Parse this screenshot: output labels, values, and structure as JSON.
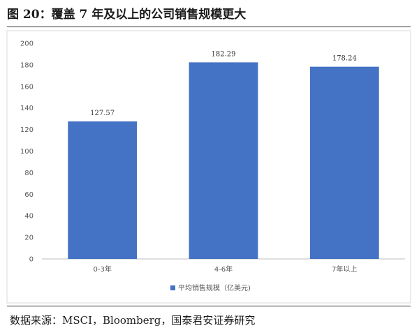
{
  "header": {
    "title": "图 20：覆盖 7 年及以上的公司销售规模更大"
  },
  "footer": {
    "source": "数据来源：MSCI，Bloomberg，国泰君安证券研究"
  },
  "chart_data": {
    "type": "bar",
    "categories": [
      "0-3年",
      "4-6年",
      "7年以上"
    ],
    "series": [
      {
        "name": "平均销售规模（亿美元)",
        "values": [
          127.57,
          182.29,
          178.24
        ],
        "color": "#4472C4"
      }
    ],
    "data_labels": [
      "127.57",
      "182.29",
      "178.24"
    ],
    "ylim": [
      0,
      200
    ],
    "yticks": [
      0,
      20,
      40,
      60,
      80,
      100,
      120,
      140,
      160,
      180,
      200
    ],
    "grid": false,
    "legend": "bottom"
  }
}
